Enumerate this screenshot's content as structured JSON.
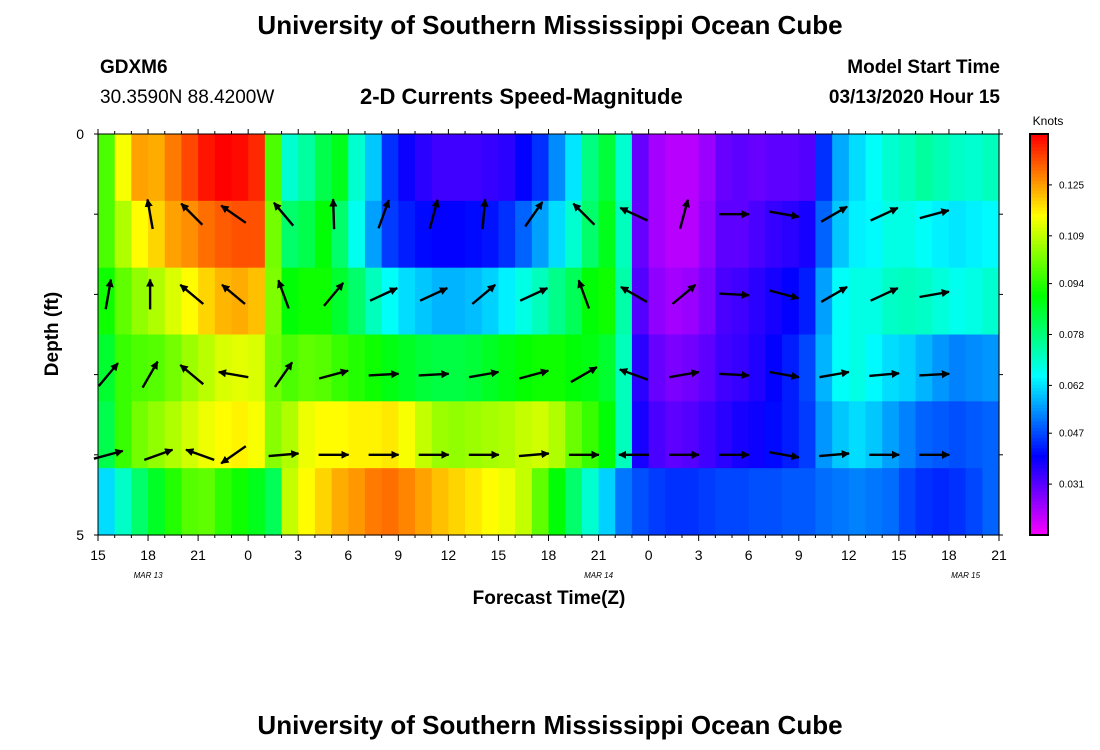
{
  "header": {
    "title": "University of Southern Mississippi Ocean Cube",
    "station_id": "GDXM6",
    "coordinates": "30.3590N 88.4200W",
    "plot_title": "2-D Currents Speed-Magnitude",
    "model_start_label": "Model Start Time",
    "model_start_value": "03/13/2020 Hour 15"
  },
  "footer": {
    "title": "University of Southern Mississippi Ocean Cube"
  },
  "chart_data": {
    "type": "heatmap",
    "title": "2-D Currents Speed-Magnitude",
    "xlabel": "Forecast Time(Z)",
    "ylabel": "Depth (ft)",
    "y_tick_labels": [
      "0",
      "5"
    ],
    "ylim": [
      0,
      5
    ],
    "x_tick_labels": [
      "15",
      "18",
      "21",
      "0",
      "3",
      "6",
      "9",
      "12",
      "15",
      "18",
      "21",
      "0",
      "3",
      "6",
      "9",
      "12",
      "15",
      "18",
      "21"
    ],
    "date_labels": [
      {
        "label": "MAR 13",
        "hour": 18
      },
      {
        "label": "MAR 14",
        "hour": 45
      },
      {
        "label": "MAR 15",
        "hour": 67
      }
    ],
    "hours_start": 15,
    "hours_count": 54,
    "depth_layers": 5,
    "colorbar": {
      "unit": "Knots",
      "min": 0.015,
      "max": 0.141,
      "tick_values": [
        0.125,
        0.109,
        0.094,
        0.078,
        0.062,
        0.047,
        0.031
      ],
      "tick_labels": [
        "0.125",
        "0.109",
        "0.094",
        "0.078",
        "0.062",
        "0.047",
        "0.031"
      ]
    },
    "speed_rows": [
      [
        0.098,
        0.115,
        0.125,
        0.124,
        0.129,
        0.134,
        0.139,
        0.141,
        0.14,
        0.137,
        0.098,
        0.07,
        0.075,
        0.083,
        0.088,
        0.07,
        0.06,
        0.045,
        0.039,
        0.036,
        0.034,
        0.034,
        0.034,
        0.035,
        0.036,
        0.04,
        0.045,
        0.054,
        0.063,
        0.078,
        0.085,
        0.07,
        0.03,
        0.024,
        0.022,
        0.022,
        0.025,
        0.03,
        0.031,
        0.03,
        0.031,
        0.031,
        0.032,
        0.045,
        0.057,
        0.062,
        0.066,
        0.07,
        0.072,
        0.075,
        0.073,
        0.071,
        0.07,
        0.072
      ],
      [
        0.098,
        0.108,
        0.116,
        0.12,
        0.125,
        0.127,
        0.13,
        0.132,
        0.133,
        0.133,
        0.102,
        0.08,
        0.083,
        0.09,
        0.08,
        0.067,
        0.056,
        0.046,
        0.043,
        0.041,
        0.04,
        0.04,
        0.041,
        0.042,
        0.045,
        0.05,
        0.056,
        0.062,
        0.07,
        0.08,
        0.088,
        0.072,
        0.03,
        0.024,
        0.022,
        0.022,
        0.026,
        0.031,
        0.031,
        0.033,
        0.035,
        0.036,
        0.038,
        0.05,
        0.06,
        0.064,
        0.065,
        0.068,
        0.068,
        0.066,
        0.064,
        0.063,
        0.064,
        0.065
      ],
      [
        0.092,
        0.1,
        0.105,
        0.108,
        0.112,
        0.116,
        0.12,
        0.123,
        0.124,
        0.122,
        0.103,
        0.09,
        0.092,
        0.092,
        0.086,
        0.08,
        0.072,
        0.066,
        0.062,
        0.06,
        0.058,
        0.058,
        0.059,
        0.061,
        0.064,
        0.068,
        0.072,
        0.077,
        0.082,
        0.09,
        0.092,
        0.074,
        0.032,
        0.026,
        0.024,
        0.025,
        0.028,
        0.033,
        0.034,
        0.036,
        0.038,
        0.04,
        0.043,
        0.056,
        0.066,
        0.068,
        0.068,
        0.071,
        0.072,
        0.071,
        0.069,
        0.067,
        0.068,
        0.07
      ],
      [
        0.086,
        0.096,
        0.098,
        0.099,
        0.102,
        0.106,
        0.109,
        0.112,
        0.113,
        0.112,
        0.102,
        0.098,
        0.1,
        0.099,
        0.096,
        0.094,
        0.092,
        0.089,
        0.087,
        0.085,
        0.084,
        0.084,
        0.085,
        0.087,
        0.089,
        0.091,
        0.092,
        0.092,
        0.09,
        0.089,
        0.086,
        0.072,
        0.036,
        0.03,
        0.028,
        0.029,
        0.031,
        0.034,
        0.035,
        0.037,
        0.04,
        0.043,
        0.047,
        0.058,
        0.066,
        0.068,
        0.065,
        0.062,
        0.061,
        0.058,
        0.055,
        0.053,
        0.054,
        0.055
      ],
      [
        0.083,
        0.096,
        0.102,
        0.105,
        0.108,
        0.111,
        0.114,
        0.116,
        0.117,
        0.115,
        0.104,
        0.108,
        0.114,
        0.116,
        0.116,
        0.117,
        0.117,
        0.118,
        0.115,
        0.11,
        0.106,
        0.105,
        0.106,
        0.107,
        0.108,
        0.11,
        0.111,
        0.108,
        0.101,
        0.096,
        0.09,
        0.072,
        0.038,
        0.033,
        0.031,
        0.032,
        0.034,
        0.036,
        0.038,
        0.039,
        0.041,
        0.043,
        0.046,
        0.055,
        0.06,
        0.062,
        0.06,
        0.056,
        0.053,
        0.05,
        0.049,
        0.048,
        0.049,
        0.05
      ],
      [
        0.062,
        0.071,
        0.08,
        0.087,
        0.094,
        0.099,
        0.1,
        0.095,
        0.092,
        0.088,
        0.082,
        0.11,
        0.116,
        0.12,
        0.124,
        0.126,
        0.129,
        0.13,
        0.128,
        0.125,
        0.122,
        0.12,
        0.118,
        0.116,
        0.114,
        0.11,
        0.1,
        0.09,
        0.08,
        0.07,
        0.061,
        0.052,
        0.048,
        0.046,
        0.045,
        0.045,
        0.046,
        0.047,
        0.047,
        0.048,
        0.048,
        0.049,
        0.049,
        0.051,
        0.052,
        0.053,
        0.052,
        0.051,
        0.047,
        0.045,
        0.044,
        0.045,
        0.047,
        0.05
      ]
    ],
    "vectors": [
      {
        "hour": 18,
        "depth": 1,
        "angle": 100
      },
      {
        "hour": 20.5,
        "depth": 1,
        "angle": 135
      },
      {
        "hour": 23,
        "depth": 1,
        "angle": 145
      },
      {
        "hour": 26,
        "depth": 1,
        "angle": 130
      },
      {
        "hour": 29,
        "depth": 1,
        "angle": 92
      },
      {
        "hour": 32,
        "depth": 1,
        "angle": 70
      },
      {
        "hour": 35,
        "depth": 1,
        "angle": 75
      },
      {
        "hour": 38,
        "depth": 1,
        "angle": 85
      },
      {
        "hour": 41,
        "depth": 1,
        "angle": 55
      },
      {
        "hour": 44,
        "depth": 1,
        "angle": 135
      },
      {
        "hour": 47,
        "depth": 1,
        "angle": 155
      },
      {
        "hour": 50,
        "depth": 1,
        "angle": 75
      },
      {
        "hour": 53,
        "depth": 1,
        "angle": 0
      },
      {
        "hour": 56,
        "depth": 1,
        "angle": -10
      },
      {
        "hour": 59,
        "depth": 1,
        "angle": 30
      },
      {
        "hour": 62,
        "depth": 1,
        "angle": 25
      },
      {
        "hour": 65,
        "depth": 1,
        "angle": 15
      },
      {
        "hour": 15.5,
        "depth": 2,
        "angle": 80
      },
      {
        "hour": 18,
        "depth": 2,
        "angle": 90
      },
      {
        "hour": 20.5,
        "depth": 2,
        "angle": 140
      },
      {
        "hour": 23,
        "depth": 2,
        "angle": 140
      },
      {
        "hour": 26,
        "depth": 2,
        "angle": 110
      },
      {
        "hour": 29,
        "depth": 2,
        "angle": 50
      },
      {
        "hour": 32,
        "depth": 2,
        "angle": 25
      },
      {
        "hour": 35,
        "depth": 2,
        "angle": 25
      },
      {
        "hour": 38,
        "depth": 2,
        "angle": 40
      },
      {
        "hour": 41,
        "depth": 2,
        "angle": 25
      },
      {
        "hour": 44,
        "depth": 2,
        "angle": 110
      },
      {
        "hour": 47,
        "depth": 2,
        "angle": 150
      },
      {
        "hour": 50,
        "depth": 2,
        "angle": 40
      },
      {
        "hour": 53,
        "depth": 2,
        "angle": -3
      },
      {
        "hour": 56,
        "depth": 2,
        "angle": -15
      },
      {
        "hour": 59,
        "depth": 2,
        "angle": 30
      },
      {
        "hour": 62,
        "depth": 2,
        "angle": 25
      },
      {
        "hour": 65,
        "depth": 2,
        "angle": 10
      },
      {
        "hour": 15.5,
        "depth": 3,
        "angle": 50
      },
      {
        "hour": 18,
        "depth": 3,
        "angle": 60
      },
      {
        "hour": 20.5,
        "depth": 3,
        "angle": 140
      },
      {
        "hour": 23,
        "depth": 3,
        "angle": 170
      },
      {
        "hour": 26,
        "depth": 3,
        "angle": 55
      },
      {
        "hour": 29,
        "depth": 3,
        "angle": 15
      },
      {
        "hour": 32,
        "depth": 3,
        "angle": 3
      },
      {
        "hour": 35,
        "depth": 3,
        "angle": 3
      },
      {
        "hour": 38,
        "depth": 3,
        "angle": 10
      },
      {
        "hour": 41,
        "depth": 3,
        "angle": 15
      },
      {
        "hour": 44,
        "depth": 3,
        "angle": 30
      },
      {
        "hour": 47,
        "depth": 3,
        "angle": 160
      },
      {
        "hour": 50,
        "depth": 3,
        "angle": 10
      },
      {
        "hour": 53,
        "depth": 3,
        "angle": -3
      },
      {
        "hour": 56,
        "depth": 3,
        "angle": -10
      },
      {
        "hour": 59,
        "depth": 3,
        "angle": 10
      },
      {
        "hour": 62,
        "depth": 3,
        "angle": 5
      },
      {
        "hour": 65,
        "depth": 3,
        "angle": 3
      },
      {
        "hour": 15.5,
        "depth": 4,
        "angle": 15
      },
      {
        "hour": 18.5,
        "depth": 4,
        "angle": 20
      },
      {
        "hour": 21,
        "depth": 4,
        "angle": 160
      },
      {
        "hour": 23,
        "depth": 4,
        "angle": 215
      },
      {
        "hour": 26,
        "depth": 4,
        "angle": 5
      },
      {
        "hour": 29,
        "depth": 4,
        "angle": 0
      },
      {
        "hour": 32,
        "depth": 4,
        "angle": 0
      },
      {
        "hour": 35,
        "depth": 4,
        "angle": 0
      },
      {
        "hour": 38,
        "depth": 4,
        "angle": 0
      },
      {
        "hour": 41,
        "depth": 4,
        "angle": 5
      },
      {
        "hour": 44,
        "depth": 4,
        "angle": 0
      },
      {
        "hour": 47,
        "depth": 4,
        "angle": 180
      },
      {
        "hour": 50,
        "depth": 4,
        "angle": 0
      },
      {
        "hour": 53,
        "depth": 4,
        "angle": 0
      },
      {
        "hour": 56,
        "depth": 4,
        "angle": -10
      },
      {
        "hour": 59,
        "depth": 4,
        "angle": 5
      },
      {
        "hour": 62,
        "depth": 4,
        "angle": 0
      },
      {
        "hour": 65,
        "depth": 4,
        "angle": 0
      }
    ],
    "grid": false
  }
}
